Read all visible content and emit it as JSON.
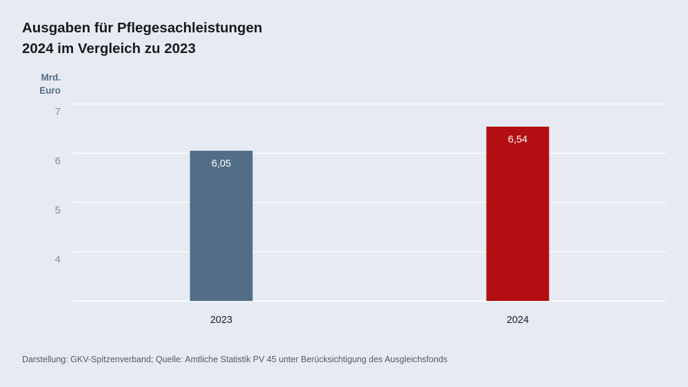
{
  "chart_data": {
    "type": "bar",
    "title": [
      "Ausgaben für Pflegesachleistungen",
      "2024 im Vergleich zu 2023"
    ],
    "ylabel": [
      "Mrd.",
      "Euro"
    ],
    "categories": [
      "2023",
      "2024"
    ],
    "values": [
      6.05,
      6.54
    ],
    "value_labels": [
      "6,05",
      "6,54"
    ],
    "bar_colors": [
      "#516e86",
      "#b30f12"
    ],
    "ylim": [
      3,
      7
    ],
    "yticks": [
      4,
      5,
      6,
      7
    ],
    "grid": true,
    "legend": "none"
  },
  "footer": "Darstellung: GKV-Spitzenverband; Quelle: Amtliche Statistik PV 45 unter Berücksichtigung des Ausgleichsfonds"
}
